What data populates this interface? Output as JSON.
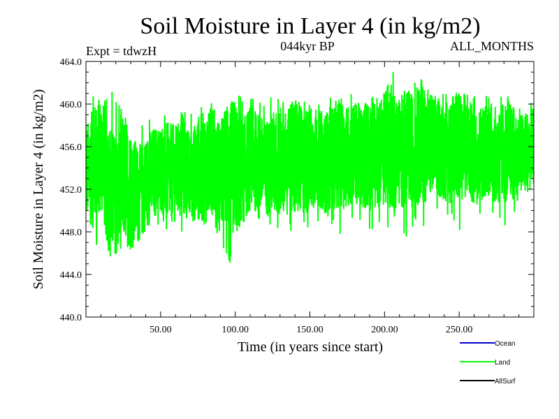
{
  "chart_data": {
    "type": "line",
    "title": "Soil Moisture in Layer 4 (in kg/m2)",
    "subtitle_left": "Expt = tdwzH",
    "subtitle_center": "044kyr BP",
    "subtitle_right": "ALL_MONTHS",
    "xlabel": "Time (in years since start)",
    "ylabel": "Soil Moisture in Layer 4 (in kg/m2)",
    "xlim": [
      0,
      300
    ],
    "ylim": [
      440,
      464
    ],
    "x_ticks": [
      50,
      100,
      150,
      200,
      250
    ],
    "x_tick_labels": [
      "50.00",
      "100.00",
      "150.00",
      "200.00",
      "250.00"
    ],
    "y_ticks": [
      440,
      444,
      448,
      452,
      456,
      460,
      464
    ],
    "y_tick_labels": [
      "440.0",
      "444.0",
      "448.0",
      "452.0",
      "456.0",
      "460.0",
      "464.0"
    ],
    "legend": [
      {
        "name": "Ocean",
        "color": "#0000cc"
      },
      {
        "name": "Land",
        "color": "#00ff00"
      },
      {
        "name": "AllSurf",
        "color": "#000000"
      }
    ],
    "legend_position": "bottom-right",
    "grid": false,
    "series": [
      {
        "name": "Land",
        "color": "#00ff00",
        "x": [
          0,
          5,
          10,
          15,
          20,
          25,
          30,
          35,
          40,
          45,
          50,
          55,
          60,
          65,
          70,
          75,
          80,
          85,
          90,
          95,
          100,
          105,
          110,
          115,
          120,
          125,
          130,
          135,
          140,
          145,
          150,
          155,
          160,
          165,
          170,
          175,
          180,
          185,
          190,
          195,
          200,
          205,
          210,
          215,
          220,
          225,
          230,
          235,
          240,
          245,
          250,
          255,
          260,
          265,
          270,
          275,
          280,
          285,
          290,
          295,
          300
        ],
        "y": [
          453.5,
          454.0,
          455.5,
          452.5,
          451.0,
          453.0,
          452.0,
          451.5,
          452.5,
          453.5,
          454.0,
          453.5,
          453.5,
          454.0,
          453.0,
          454.0,
          454.0,
          454.5,
          453.5,
          454.0,
          454.0,
          453.5,
          455.0,
          454.5,
          454.0,
          454.5,
          454.5,
          455.0,
          455.0,
          454.5,
          455.0,
          455.0,
          454.5,
          455.0,
          455.5,
          455.0,
          455.5,
          455.0,
          455.5,
          455.0,
          456.0,
          456.0,
          455.5,
          456.0,
          455.5,
          456.5,
          456.0,
          456.0,
          455.5,
          455.5,
          456.0,
          456.0,
          455.0,
          455.5,
          456.0,
          455.0,
          455.5,
          455.5,
          455.0,
          455.5,
          456.0
        ],
        "min": [
          447.5,
          447.0,
          446.0,
          445.5,
          446.0,
          444.0,
          444.5,
          447.0,
          447.5,
          448.0,
          448.5,
          448.0,
          447.0,
          447.5,
          448.5,
          447.5,
          447.0,
          448.0,
          447.5,
          445.0,
          445.0,
          448.0,
          448.5,
          449.0,
          448.5,
          448.5,
          448.0,
          449.0,
          446.0,
          448.5,
          448.0,
          449.0,
          449.0,
          448.5,
          447.5,
          448.5,
          449.0,
          448.5,
          447.5,
          449.0,
          447.0,
          449.0,
          449.5,
          446.5,
          449.0,
          448.5,
          448.0,
          449.5,
          449.5,
          449.0,
          448.0,
          449.0,
          449.5,
          449.0,
          449.5,
          449.0,
          448.5,
          449.0,
          450.0,
          450.5,
          451.0
        ],
        "max": [
          458.5,
          461.5,
          460.0,
          461.5,
          461.0,
          459.0,
          459.0,
          458.5,
          458.5,
          459.0,
          459.0,
          460.0,
          458.5,
          459.5,
          459.0,
          460.0,
          460.5,
          460.0,
          460.0,
          460.0,
          461.5,
          460.5,
          461.0,
          461.0,
          460.0,
          461.0,
          461.0,
          460.0,
          460.5,
          461.0,
          461.0,
          460.5,
          461.0,
          461.0,
          460.5,
          461.0,
          461.0,
          461.0,
          461.5,
          461.0,
          461.0,
          464.0,
          462.5,
          461.0,
          462.0,
          463.0,
          461.0,
          461.5,
          461.0,
          461.5,
          461.0,
          461.5,
          461.0,
          460.5,
          461.0,
          460.5,
          461.0,
          460.5,
          460.0,
          460.5,
          460.0
        ]
      }
    ]
  }
}
